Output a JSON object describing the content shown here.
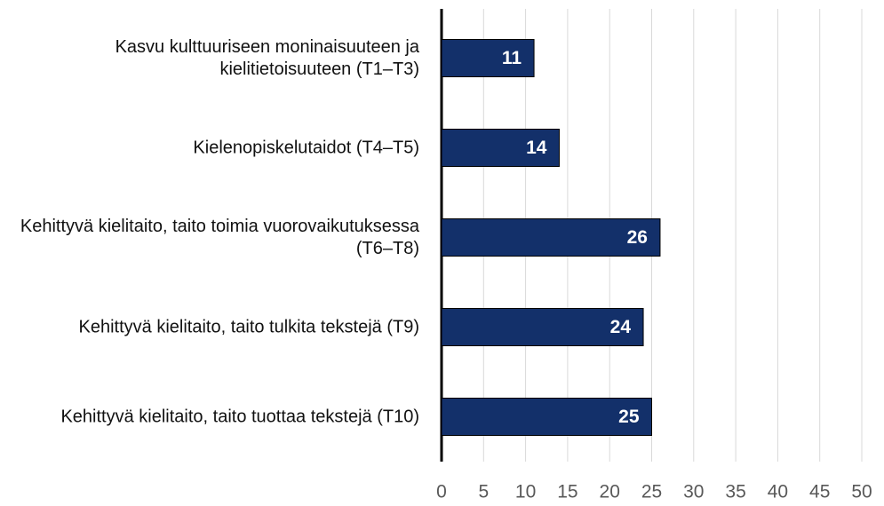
{
  "chart_data": {
    "type": "bar",
    "orientation": "horizontal",
    "categories": [
      "Kasvu kulttuuriseen moninaisuuteen ja kielitietoisuuteen (T1–T3)",
      "Kielenopiskelutaidot (T4–T5)",
      "Kehittyvä kielitaito, taito toimia vuorovaikutuksessa (T6–T8)",
      "Kehittyvä kielitaito, taito tulkita tekstejä (T9)",
      "Kehittyvä kielitaito, taito tuottaa tekstejä (T10)"
    ],
    "values": [
      11,
      14,
      26,
      24,
      25
    ],
    "color": "#13306a",
    "xlim": [
      0,
      50
    ],
    "xticks": [
      0,
      5,
      10,
      15,
      20,
      25,
      30,
      35,
      40,
      45,
      50
    ],
    "grid": true
  }
}
